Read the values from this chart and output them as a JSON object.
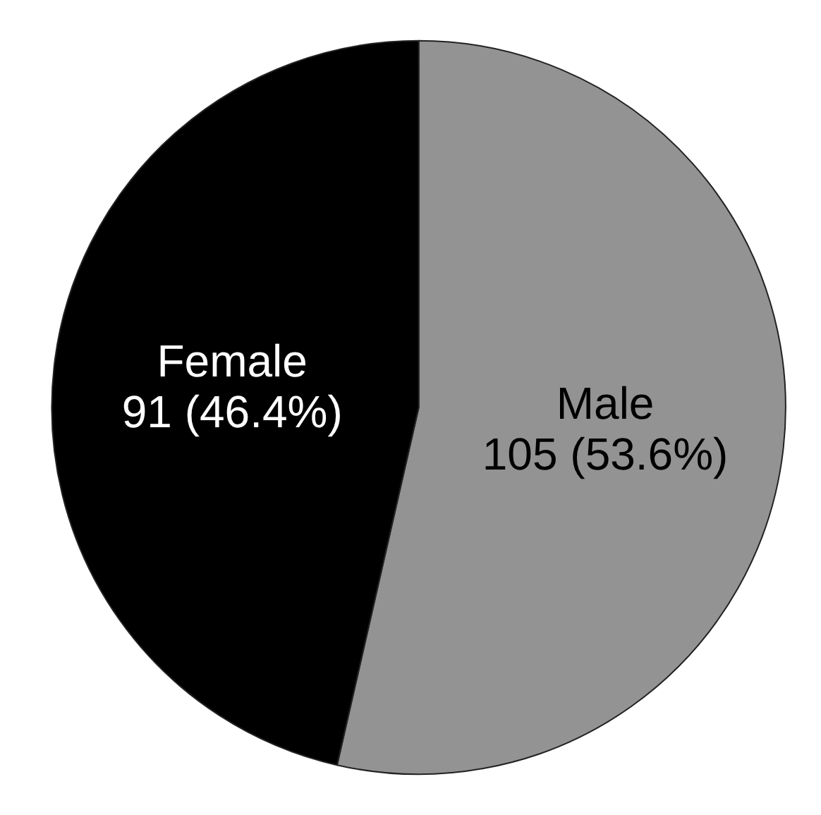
{
  "chart_data": {
    "type": "pie",
    "categories": [
      "Male",
      "Female"
    ],
    "values": [
      105,
      91
    ],
    "colors": [
      "#939393",
      "#000000"
    ],
    "value_labels": [
      "105 (53.6%)",
      "91 (46.4%)"
    ],
    "legend": false
  }
}
